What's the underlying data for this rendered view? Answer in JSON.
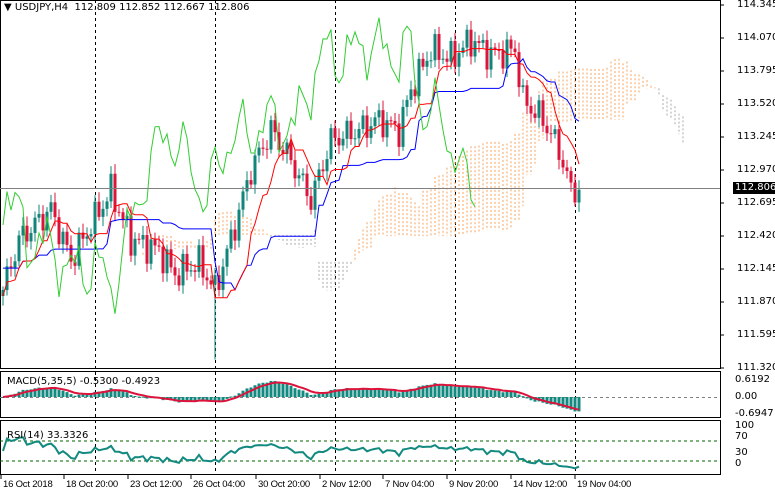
{
  "header": {
    "symbol": "USDJPY,H4",
    "ohlc": "112.809 112.852 112.667 112.806"
  },
  "current_price": "112.806",
  "price_axis": [
    "114.345",
    "114.070",
    "113.795",
    "113.520",
    "113.245",
    "112.970",
    "112.695",
    "112.420",
    "112.145",
    "111.870",
    "111.595",
    "111.320"
  ],
  "macd": {
    "title": "MACD(5,35,5) -0.5300 -0.4923",
    "axis": [
      "0.6192",
      "0.00",
      "-0.6947"
    ]
  },
  "rsi": {
    "title": "RSI(14) 33.3326",
    "axis": [
      "100",
      "70",
      "30",
      "0"
    ]
  },
  "time_axis": [
    "16 Oct 2018",
    "18 Oct 20:00",
    "23 Oct 12:00",
    "26 Oct 04:00",
    "30 Oct 20:00",
    "2 Nov 12:00",
    "7 Nov 04:00",
    "9 Nov 20:00",
    "14 Nov 12:00",
    "19 Nov 04:00"
  ],
  "colors": {
    "bull": "#12857b",
    "bear": "#dc143c",
    "tenkan": "#ff0000",
    "kijun": "#0000ff",
    "chikou": "#32cd32",
    "cloud_up": "#f4a460",
    "cloud_down": "#a9a9a9",
    "macd_hist": "#138a80",
    "macd_signal": "#dc143c",
    "rsi": "#138a80"
  },
  "chart_data": {
    "type": "candlestick",
    "price_keypoints": [
      [
        0,
        111.97
      ],
      [
        4,
        112.39
      ],
      [
        12,
        112.64
      ],
      [
        17,
        112.22
      ],
      [
        27,
        112.8
      ],
      [
        32,
        112.39
      ],
      [
        39,
        112.3
      ],
      [
        43,
        112.1
      ],
      [
        49,
        112.2
      ],
      [
        53,
        111.97
      ],
      [
        57,
        112.39
      ],
      [
        62,
        112.97
      ],
      [
        67,
        113.3
      ],
      [
        72,
        113.05
      ],
      [
        77,
        112.72
      ],
      [
        82,
        113.22
      ],
      [
        89,
        113.3
      ],
      [
        94,
        113.39
      ],
      [
        99,
        113.3
      ],
      [
        102,
        113.64
      ],
      [
        107,
        113.97
      ],
      [
        112,
        113.9
      ],
      [
        117,
        114.05
      ],
      [
        122,
        113.93
      ],
      [
        128,
        113.97
      ],
      [
        130,
        113.55
      ],
      [
        135,
        113.39
      ],
      [
        139,
        113.14
      ],
      [
        142,
        112.8
      ],
      [
        144,
        112.806
      ]
    ],
    "ylim": [
      111.32,
      114.345
    ]
  }
}
